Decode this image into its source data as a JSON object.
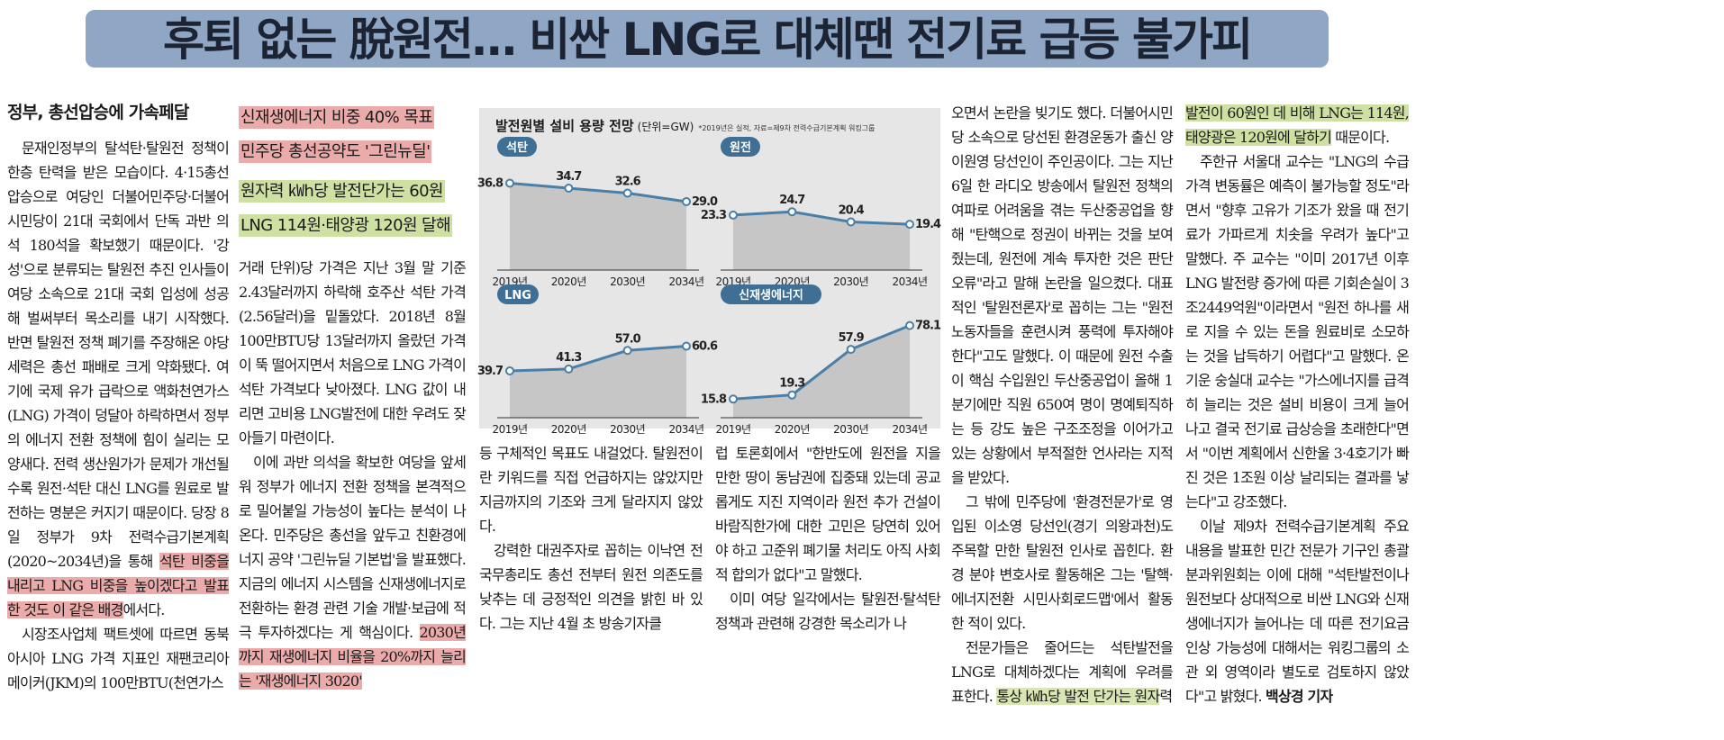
{
  "headline": "후퇴 없는 脫원전… 비싼 LNG로 대체땐 전기료 급등 불가피",
  "col1": {
    "section_head": "정부, 총선압승에 가속페달",
    "p1_a": "문재인정부의 탈석탄·탈원전 정책이 한층 탄력을 받은 모습이다. 4·15총선 압승으로 여당인 더불어민주당·더불어시민당이 21대 국회에서 단독 과반 의석 180석을 확보했기 때문이다. '강성'으로 분류되는 탈원전 추진 인사들이 여당 소속으로 21대 국회 입성에 성공해 벌써부터 목소리를 내기 시작했다. 반면 탈원전 정책 폐기를 주장해온 야당 세력은 총선 패배로 크게 약화됐다. 여기에 국제 유가 급락으로 액화천연가스(LNG) 가격이 덩달아 하락하면서 정부의 에너지 전환 정책에 힘이 실리는 모양새다. 전력 생산원가가 문제가 개선될수록 원전·석탄 대신 LNG를 원료로 발전하는 명분은 커지기 때문이다. 당장 8일 정부가 9차 전력수급기본계획(2020~2034년)을 통해 ",
    "p1_hl": "석탄 비중을 내리고 LNG 비중을 높이겠다고 발표한 것도 이 같은 배경",
    "p1_b": "에서다.",
    "p2": "시장조사업체 팩트셋에 따르면 동북아시아 LNG 가격 지표인 재팬코리아메이커(JKM)의 100만BTU(천연가스"
  },
  "col2": {
    "sub1": "신재생에너지 비중 40% 목표",
    "sub2": "민주당 총선공약도 '그린뉴딜'",
    "sub3": "원자력 ㎾h당 발전단가는 60원",
    "sub4": "LNG 114원·태양광 120원 달해",
    "p1": "거래 단위)당 가격은 지난 3월 말 기준 2.43달러까지 하락해 호주산 석탄 가격(2.56달러)을 밑돌았다. 2018년 8월 100만BTU당 13달러까지 올랐던 가격이 뚝 떨어지면서 처음으로 LNG 가격이 석탄 가격보다 낮아졌다. LNG 값이 내리면 고비용 LNG발전에 대한 우려도 잦아들기 마련이다.",
    "p2_a": "이에 과반 의석을 확보한 여당을 앞세워 정부가 에너지 전환 정책을 본격적으로 밀어붙일 가능성이 높다는 분석이 나온다. 민주당은 총선을 앞두고 친환경에너지 공약 '그린뉴딜 기본법'을 발표했다. 지금의 에너지 시스템을 신재생에너지로 전환하는 환경 관련 기술 개발·보급에 적극 투자하겠다는 게 핵심이다. ",
    "p2_hl": "2030년까지 재생에너지 비율을 20%까지 늘리는 '재생에너지 3020'"
  },
  "col3": {
    "p1": "등 구체적인 목표도 내걸었다. 탈원전이란 키워드를 직접 언급하지는 않았지만 지금까지의 기조와 크게 달라지지 않았다.",
    "p2": "강력한 대권주자로 꼽히는 이낙연 전 국무총리도 총선 전부터 원전 의존도를 낮추는 데 긍정적인 의견을 밝힌 바 있다. 그는 지난 4월 초 방송기자클"
  },
  "col4": {
    "p1": "럽 토론회에서 \"한반도에 원전을 지을 만한 땅이 동남권에 집중돼 있는데 공교롭게도 지진 지역이라 원전 추가 건설이 바람직한가에 대한 고민은 당연히 있어야 하고 고준위 폐기물 처리도 아직 사회적 합의가 없다\"고 말했다.",
    "p2": "이미 여당 일각에서는 탈원전·탈석탄 정책과 관련해 강경한 목소리가 나"
  },
  "col5": {
    "p1": "오면서 논란을 빚기도 했다. 더불어시민당 소속으로 당선된 환경운동가 출신 양이원영 당선인이 주인공이다. 그는 지난 6일 한 라디오 방송에서 탈원전 정책의 여파로 어려움을 겪는 두산중공업을 향해 \"탄핵으로 정권이 바뀌는 것을 보여줬는데, 원전에 계속 투자한 것은 판단 오류\"라고 말해 논란을 일으켰다. 대표적인 '탈원전론자'로 꼽히는 그는 \"원전 노동자들을 훈련시켜 풍력에 투자해야 한다\"고도 말했다. 이 때문에 원전 수출이 핵심 수입원인 두산중공업이 올해 1분기에만 직원 650여 명이 명예퇴직하는 등 강도 높은 구조조정을 이어가고 있는 상황에서 부적절한 언사라는 지적을 받았다.",
    "p2": "그 밖에 민주당에 '환경전문가'로 영입된 이소영 당선인(경기 의왕과천)도 주목할 만한 탈원전 인사로 꼽힌다. 환경 분야 변호사로 활동해온 그는 '탈핵·에너지전환 시민사회로드맵'에서 활동한 적이 있다.",
    "p3_a": "전문가들은 줄어드는 석탄발전을 LNG로 대체하겠다는 계획에 우려를 표한다. ",
    "p3_hl": "통상 ㎾h당 발전 단가는 원자",
    "p3_b": "력"
  },
  "col6": {
    "p1_hl": "발전이 60원인 데 비해 LNG는 114원, 태양광은 120원에 달하기",
    "p1_b": " 때문이다.",
    "p2": "주한규 서울대 교수는 \"LNG의 수급 가격 변동률은 예측이 불가능할 정도\"라면서 \"향후 고유가 기조가 왔을 때 전기료가 가파르게 치솟을 우려가 높다\"고 말했다. 주 교수는 \"이미 2017년 이후 LNG 발전량 증가에 따른 기회손실이 3조2449억원\"이라면서 \"원전 하나를 새로 지을 수 있는 돈을 원료비로 소모하는 것을 납득하기 어렵다\"고 말했다. 온기운 숭실대 교수는 \"가스에너지를 급격히 늘리는 것은 설비 비용이 크게 늘어나고 결국 전기료 급상승을 초래한다\"면서 \"이번 계획에서 신한울 3·4호기가 빠진 것은 1조원 이상 날리되는 결과를 낳는다\"고 강조했다.",
    "p3": "이날 제9차 전력수급기본계획 주요 내용을 발표한 민간 전문가 기구인 총괄분과위원회는 이에 대해 \"석탄발전이나 원전보다 상대적으로 비싼 LNG와 신재생에너지가 늘어나는 데 따른 전기요금 인상 가능성에 대해서는 워킹그룹의 소관 외 영역이라 별도로 검토하지 않았다\"고 밝혔다.",
    "byline": "백상경 기자"
  },
  "chart": {
    "title": "발전원별 설비 용량 전망",
    "unit": "(단위=GW)",
    "note": "*2019년은 실적, 자료=제9차 전력수급기본계획 워킹그룹"
  },
  "chart_data": [
    {
      "type": "area",
      "title": "석탄",
      "categories": [
        "2019년",
        "2020년",
        "2030년",
        "2034년"
      ],
      "values": [
        36.8,
        34.7,
        32.6,
        29.0
      ],
      "labels": [
        "36.8",
        "34.7",
        "32.6",
        "29.0"
      ],
      "ylim": [
        0,
        45
      ]
    },
    {
      "type": "area",
      "title": "원전",
      "categories": [
        "2019년",
        "2020년",
        "2030년",
        "2034년"
      ],
      "values": [
        23.3,
        24.7,
        20.4,
        19.4
      ],
      "labels": [
        "23.3",
        "24.7",
        "20.4",
        "19.4"
      ],
      "ylim": [
        0,
        45
      ]
    },
    {
      "type": "area",
      "title": "LNG",
      "categories": [
        "2019년",
        "2020년",
        "2030년",
        "2034년"
      ],
      "values": [
        39.7,
        41.3,
        57.0,
        60.6
      ],
      "labels": [
        "39.7",
        "41.3",
        "57.0",
        "60.6"
      ],
      "ylim": [
        0,
        90
      ]
    },
    {
      "type": "area",
      "title": "신재생에너지",
      "categories": [
        "2019년",
        "2020년",
        "2030년",
        "2034년"
      ],
      "values": [
        15.8,
        19.3,
        57.9,
        78.1
      ],
      "labels": [
        "15.8",
        "19.3",
        "57.9",
        "78.1"
      ],
      "ylim": [
        0,
        90
      ]
    }
  ],
  "colors": {
    "headline_band": "#8fa6c4",
    "red_highlight": "#ecabab",
    "green_highlight": "#cfe0a3",
    "line": "#4a7fa8",
    "badge": "#3f6f95",
    "chart_bg": "#e6e6e6",
    "area": "#c6c6c6"
  }
}
